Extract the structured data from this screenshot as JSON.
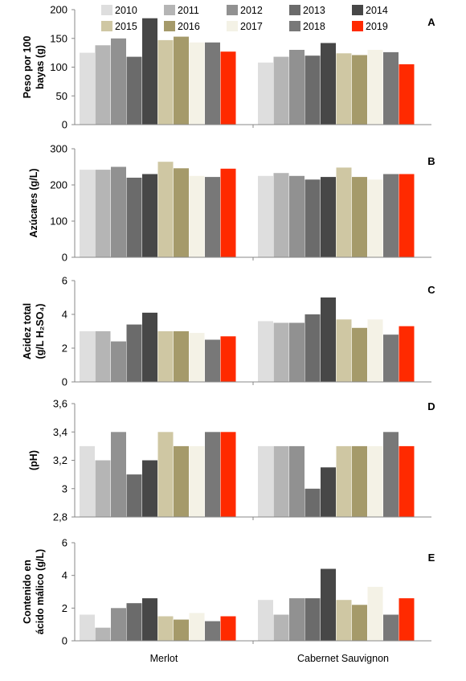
{
  "legend": {
    "years": [
      "2010",
      "2011",
      "2012",
      "2013",
      "2014",
      "2015",
      "2016",
      "2017",
      "2018",
      "2019"
    ],
    "colors": [
      "#dedede",
      "#b5b5b5",
      "#919191",
      "#6b6b6b",
      "#474747",
      "#cfc7a3",
      "#a59a6a",
      "#f4f2e6",
      "#787878",
      "#ff2a00"
    ]
  },
  "categories": [
    "Merlot",
    "Cabernet Sauvignon"
  ],
  "chart_data": [
    {
      "type": "bar",
      "panel": "A",
      "ylabel_lines": [
        "Peso por 100",
        "bayas (g)"
      ],
      "ylim": [
        0,
        200
      ],
      "yticks": [
        "0",
        "50",
        "100",
        "150",
        "200"
      ],
      "categories": [
        "Merlot",
        "Cabernet Sauvignon"
      ],
      "series": [
        {
          "name": "2010",
          "values": [
            125,
            108
          ]
        },
        {
          "name": "2011",
          "values": [
            138,
            118
          ]
        },
        {
          "name": "2012",
          "values": [
            150,
            130
          ]
        },
        {
          "name": "2013",
          "values": [
            118,
            120
          ]
        },
        {
          "name": "2014",
          "values": [
            185,
            142
          ]
        },
        {
          "name": "2015",
          "values": [
            147,
            124
          ]
        },
        {
          "name": "2016",
          "values": [
            153,
            121
          ]
        },
        {
          "name": "2017",
          "values": [
            143,
            130
          ]
        },
        {
          "name": "2018",
          "values": [
            143,
            126
          ]
        },
        {
          "name": "2019",
          "values": [
            127,
            105
          ]
        }
      ]
    },
    {
      "type": "bar",
      "panel": "B",
      "ylabel_lines": [
        "Azúcares (g/L)"
      ],
      "ylim": [
        0,
        300
      ],
      "yticks": [
        "0",
        "100",
        "200",
        "300"
      ],
      "categories": [
        "Merlot",
        "Cabernet Sauvignon"
      ],
      "series": [
        {
          "name": "2010",
          "values": [
            242,
            225
          ]
        },
        {
          "name": "2011",
          "values": [
            242,
            233
          ]
        },
        {
          "name": "2012",
          "values": [
            250,
            225
          ]
        },
        {
          "name": "2013",
          "values": [
            220,
            215
          ]
        },
        {
          "name": "2014",
          "values": [
            230,
            222
          ]
        },
        {
          "name": "2015",
          "values": [
            264,
            248
          ]
        },
        {
          "name": "2016",
          "values": [
            246,
            222
          ]
        },
        {
          "name": "2017",
          "values": [
            225,
            215
          ]
        },
        {
          "name": "2018",
          "values": [
            222,
            230
          ]
        },
        {
          "name": "2019",
          "values": [
            245,
            230
          ]
        }
      ]
    },
    {
      "type": "bar",
      "panel": "C",
      "ylabel_lines": [
        "Acidez total",
        "(g/L H₂SO₄)"
      ],
      "ylim": [
        0,
        6
      ],
      "yticks": [
        "0",
        "2",
        "4",
        "6"
      ],
      "categories": [
        "Merlot",
        "Cabernet Sauvignon"
      ],
      "series": [
        {
          "name": "2010",
          "values": [
            3.0,
            3.6
          ]
        },
        {
          "name": "2011",
          "values": [
            3.0,
            3.5
          ]
        },
        {
          "name": "2012",
          "values": [
            2.4,
            3.5
          ]
        },
        {
          "name": "2013",
          "values": [
            3.4,
            4.0
          ]
        },
        {
          "name": "2014",
          "values": [
            4.1,
            5.0
          ]
        },
        {
          "name": "2015",
          "values": [
            3.0,
            3.7
          ]
        },
        {
          "name": "2016",
          "values": [
            3.0,
            3.2
          ]
        },
        {
          "name": "2017",
          "values": [
            2.9,
            3.7
          ]
        },
        {
          "name": "2018",
          "values": [
            2.5,
            2.8
          ]
        },
        {
          "name": "2019",
          "values": [
            2.7,
            3.3
          ]
        }
      ]
    },
    {
      "type": "bar",
      "panel": "D",
      "ylabel_lines": [
        "(pH)"
      ],
      "ylim": [
        2.8,
        3.6
      ],
      "yticks": [
        "2,8",
        "3",
        "3,2",
        "3,4",
        "3,6"
      ],
      "categories": [
        "Merlot",
        "Cabernet Sauvignon"
      ],
      "series": [
        {
          "name": "2010",
          "values": [
            3.3,
            3.3
          ]
        },
        {
          "name": "2011",
          "values": [
            3.2,
            3.3
          ]
        },
        {
          "name": "2012",
          "values": [
            3.4,
            3.3
          ]
        },
        {
          "name": "2013",
          "values": [
            3.1,
            3.0
          ]
        },
        {
          "name": "2014",
          "values": [
            3.2,
            3.15
          ]
        },
        {
          "name": "2015",
          "values": [
            3.4,
            3.3
          ]
        },
        {
          "name": "2016",
          "values": [
            3.3,
            3.3
          ]
        },
        {
          "name": "2017",
          "values": [
            3.3,
            3.3
          ]
        },
        {
          "name": "2018",
          "values": [
            3.4,
            3.4
          ]
        },
        {
          "name": "2019",
          "values": [
            3.4,
            3.3
          ]
        }
      ]
    },
    {
      "type": "bar",
      "panel": "E",
      "ylabel_lines": [
        "Contenido en",
        "ácido málico (g/L)"
      ],
      "ylim": [
        0,
        6
      ],
      "yticks": [
        "0",
        "2",
        "4",
        "6"
      ],
      "categories": [
        "Merlot",
        "Cabernet Sauvignon"
      ],
      "series": [
        {
          "name": "2010",
          "values": [
            1.6,
            2.5
          ]
        },
        {
          "name": "2011",
          "values": [
            0.8,
            1.6
          ]
        },
        {
          "name": "2012",
          "values": [
            2.0,
            2.6
          ]
        },
        {
          "name": "2013",
          "values": [
            2.3,
            2.6
          ]
        },
        {
          "name": "2014",
          "values": [
            2.6,
            4.4
          ]
        },
        {
          "name": "2015",
          "values": [
            1.5,
            2.5
          ]
        },
        {
          "name": "2016",
          "values": [
            1.3,
            2.2
          ]
        },
        {
          "name": "2017",
          "values": [
            1.7,
            3.3
          ]
        },
        {
          "name": "2018",
          "values": [
            1.2,
            1.6
          ]
        },
        {
          "name": "2019",
          "values": [
            1.5,
            2.6
          ]
        }
      ]
    }
  ]
}
